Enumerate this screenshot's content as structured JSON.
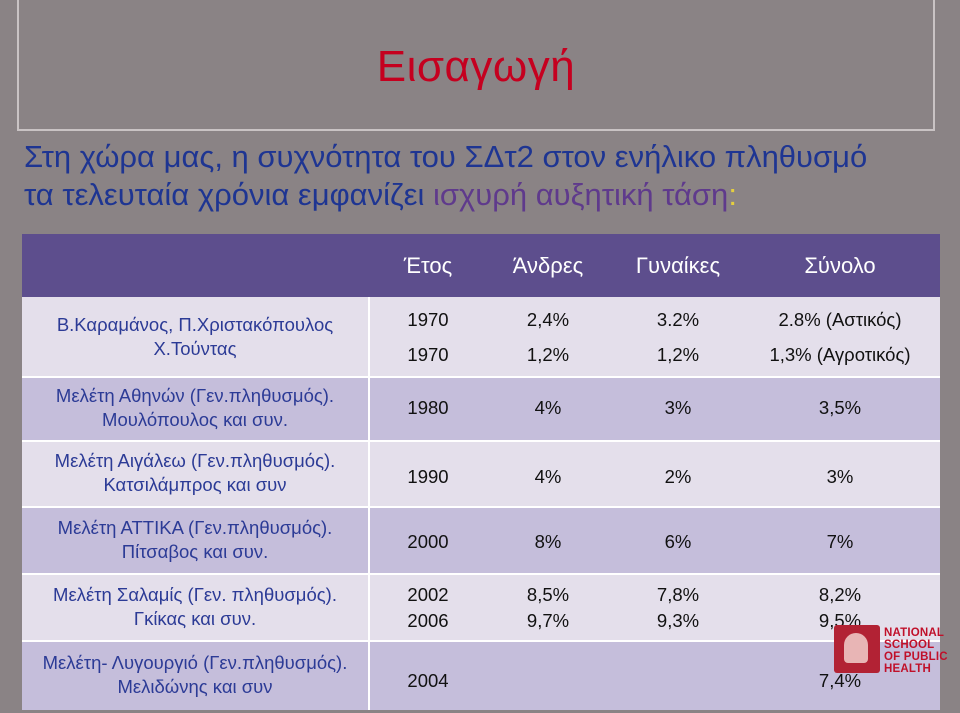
{
  "title": "Εισαγωγή",
  "subtitle": {
    "line1": "Στη χώρα μας, η συχνότητα του ΣΔτ2 στον ενήλικο πληθυσμό",
    "line2_start": "τα τελευταία χρόνια εμφανίζει ",
    "line2_highlight": "ισχυρή αυξητική τάση",
    "line2_end": ":"
  },
  "table": {
    "headers": [
      "Έτος",
      "Άνδρες",
      "Γυναίκες",
      "Σύνολο"
    ],
    "rows": [
      {
        "source": [
          "Β.Καραμάνος, Π.Χριστακόπουλος",
          "Χ.Τούντας"
        ],
        "values": [
          [
            "1970",
            "2,4%",
            "3.2%",
            "2.8% (Αστικός)"
          ],
          [
            "1970",
            "1,2%",
            "1,2%",
            "1,3% (Αγροτικός)"
          ]
        ]
      },
      {
        "source": [
          "Μελέτη Αθηνών (Γεν.πληθυσμός).",
          "Μουλόπουλος και συν."
        ],
        "values": [
          [
            "1980",
            "4%",
            "3%",
            "3,5%"
          ]
        ]
      },
      {
        "source": [
          "Μελέτη Αιγάλεω (Γεν.πληθυσμός).",
          "Κατσιλάμπρος και συν"
        ],
        "values": [
          [
            "1990",
            "4%",
            "2%",
            "3%"
          ]
        ]
      },
      {
        "source": [
          "Μελέτη ΑΤΤΙΚΑ (Γεν.πληθυσμός).",
          "Πίτσαβος και συν."
        ],
        "values": [
          [
            "2000",
            "8%",
            "6%",
            "7%"
          ]
        ]
      },
      {
        "source": [
          "Μελέτη Σαλαμίς (Γεν. πληθυσμός).",
          "Γκίκας και συν."
        ],
        "values": [
          [
            "2002",
            "8,5%",
            "7,8%",
            "8,2%"
          ],
          [
            "2006",
            "9,7%",
            "9,3%",
            "9,5%"
          ]
        ]
      },
      {
        "source": [
          "Μελέτη- Λυγουργιό (Γεν.πληθυσμός).",
          "Μελιδώνης και συν"
        ],
        "values": [
          [
            "2004",
            "",
            "",
            "7,4%"
          ]
        ]
      }
    ]
  },
  "logo": {
    "lines": [
      "NATIONAL",
      "SCHOOL",
      "OF PUBLIC",
      "HEALTH"
    ]
  },
  "colors": {
    "background": "#8a8385",
    "title": "#c5001f",
    "subtitle": "#1e3592",
    "header_bg": "#5d4e8d",
    "row_light": "#e4dfeb",
    "row_dark": "#c5bedb"
  }
}
